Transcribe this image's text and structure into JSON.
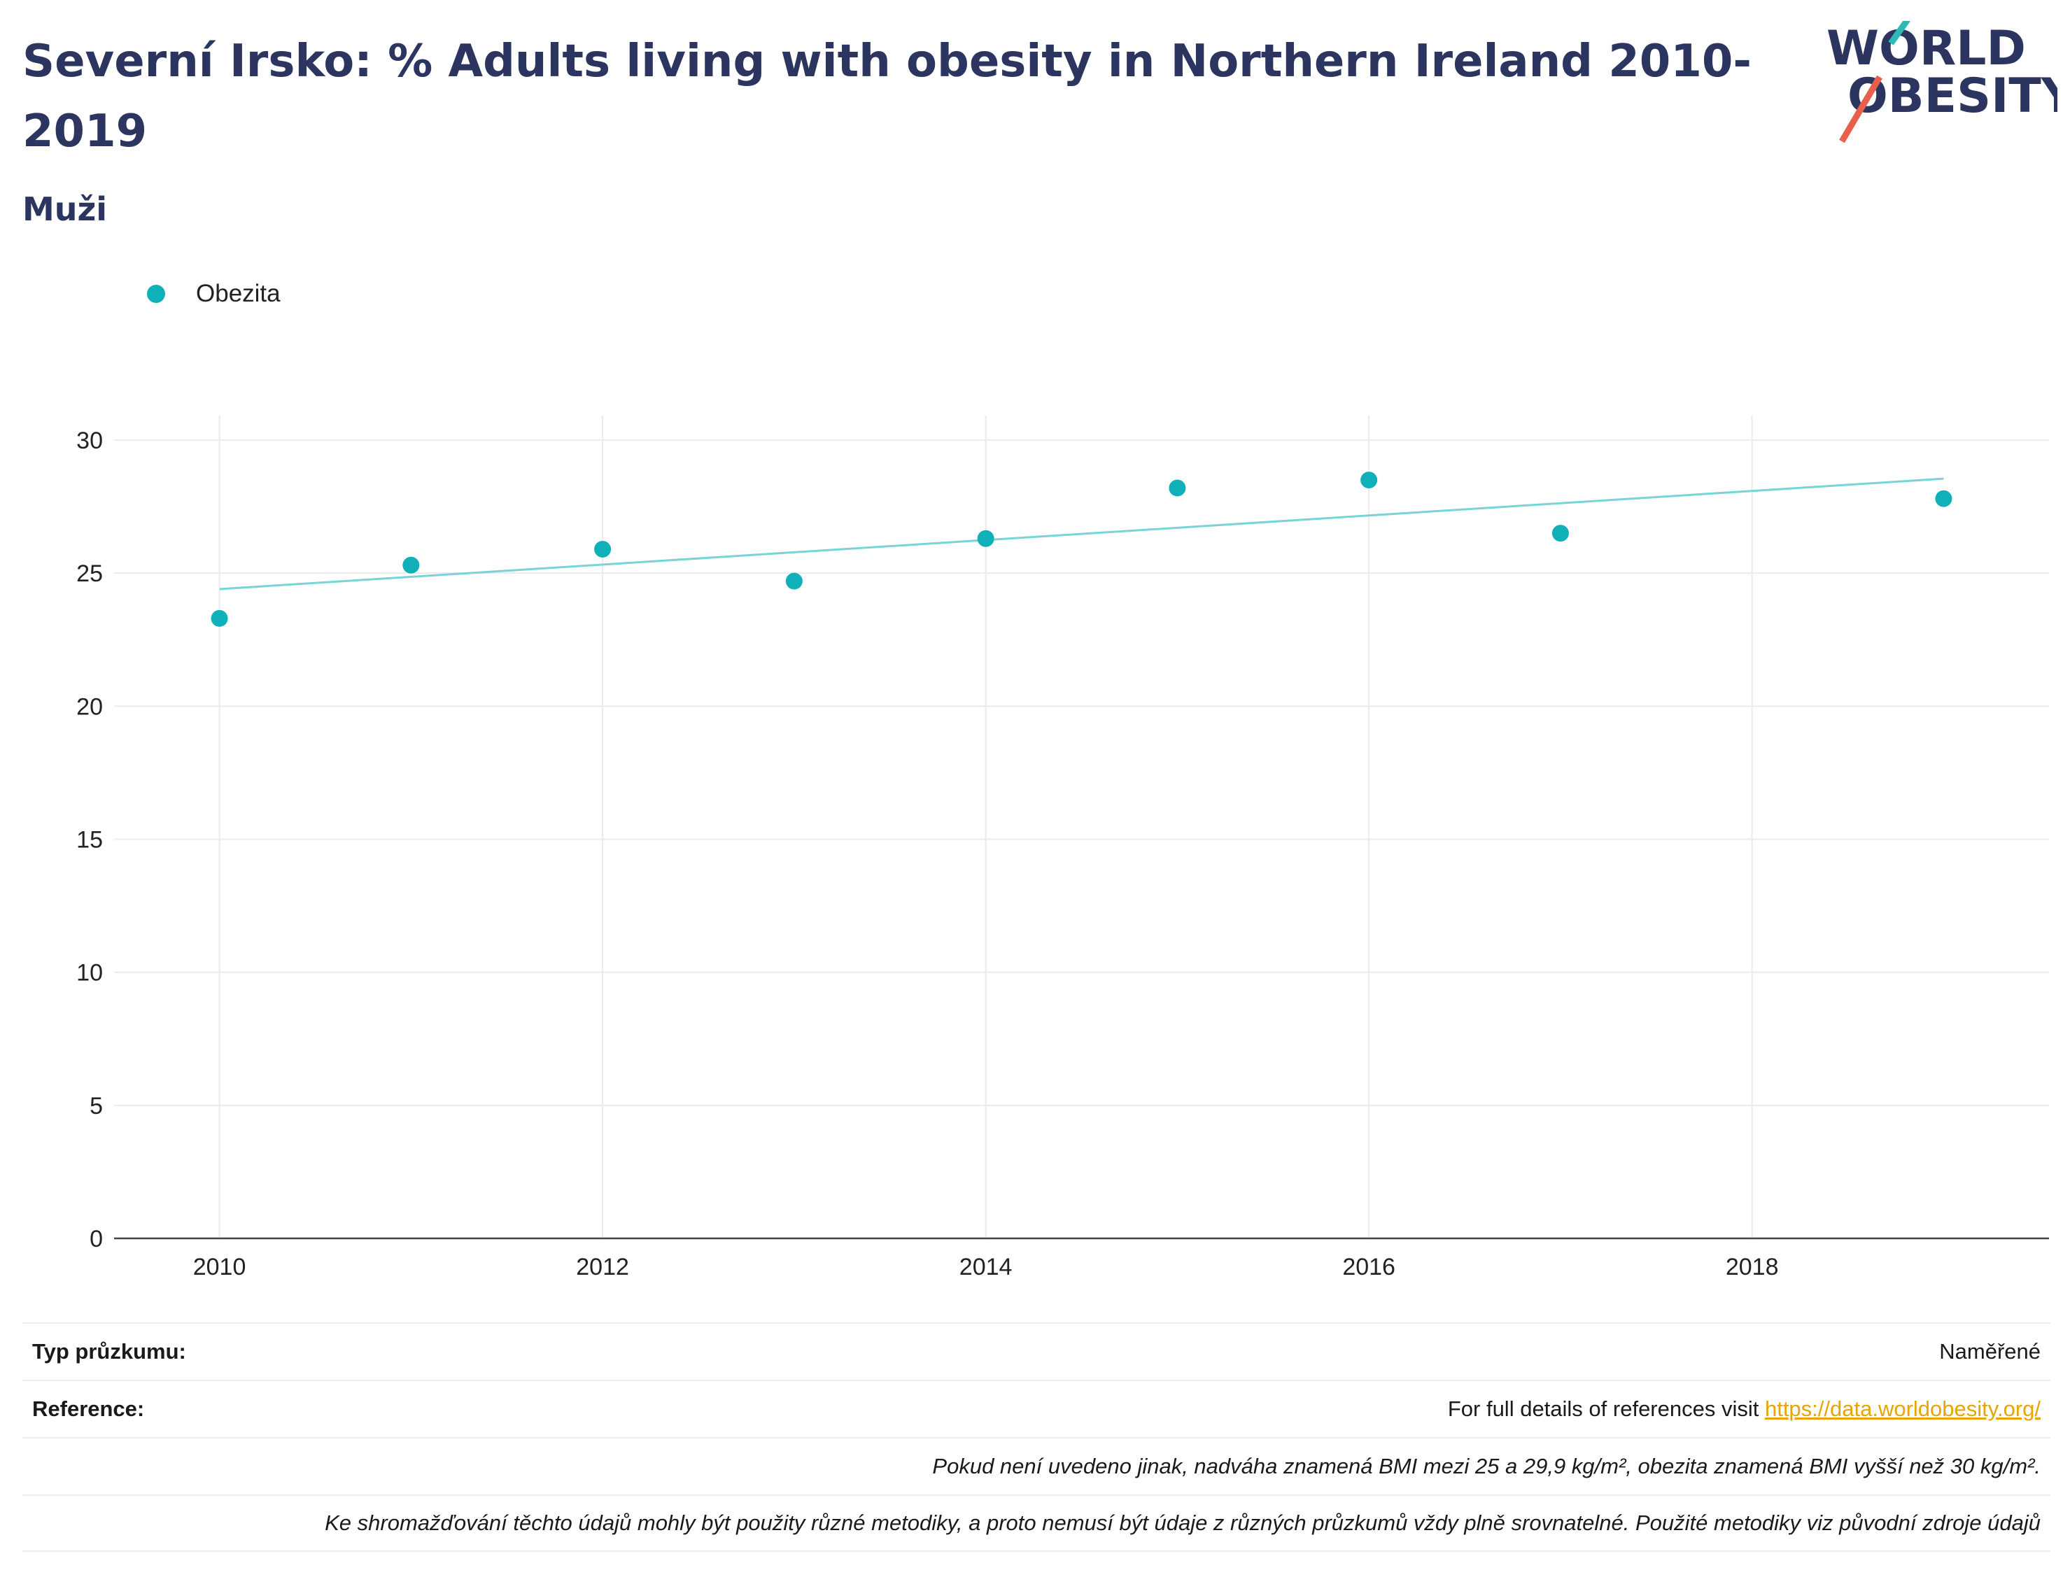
{
  "header": {
    "title": "Severní Irsko: % Adults living with obesity in Northern Ireland 2010-2019",
    "subtitle": "Muži",
    "logo_line1": "WORLD",
    "logo_line2": "OBESITY"
  },
  "legend": {
    "label": "Obezita"
  },
  "colors": {
    "marker": "#0fb0b8",
    "trend": "#79d4d8",
    "title": "#2b3560",
    "link": "#e8a400"
  },
  "chart_data": {
    "type": "scatter",
    "x": [
      2010,
      2011,
      2012,
      2013,
      2014,
      2015,
      2016,
      2017,
      2018,
      2019
    ],
    "series": [
      {
        "name": "Obezita",
        "x": [
          2010,
          2011,
          2012,
          2013,
          2014,
          2015,
          2016,
          2017,
          2019
        ],
        "values": [
          23.3,
          25.3,
          25.9,
          24.7,
          26.3,
          28.2,
          28.5,
          26.5,
          27.8
        ]
      }
    ],
    "trendline": {
      "x": [
        2010,
        2019
      ],
      "values": [
        24.4,
        28.55
      ]
    },
    "xticks": [
      "2010",
      "2012",
      "2014",
      "2016",
      "2018"
    ],
    "yticks": [
      "0",
      "5",
      "10",
      "15",
      "20",
      "25",
      "30"
    ],
    "xlim": [
      2009.45,
      2019.55
    ],
    "ylim": [
      0,
      30.5
    ],
    "grid": true
  },
  "footer": {
    "survey_label": "Typ průzkumu:",
    "survey_value": "Naměřené",
    "reference_label": "Reference:",
    "reference_text": "For full details of references visit ",
    "reference_link": "https://data.worldobesity.org/",
    "note1": "Pokud není uvedeno jinak, nadváha znamená BMI mezi 25 a 29,9 kg/m², obezita znamená BMI vyšší než 30 kg/m².",
    "note2": "Ke shromažďování těchto údajů mohly být použity různé metodiky, a proto nemusí být údaje z různých průzkumů vždy plně srovnatelné. Použité metodiky viz původní zdroje údajů"
  }
}
